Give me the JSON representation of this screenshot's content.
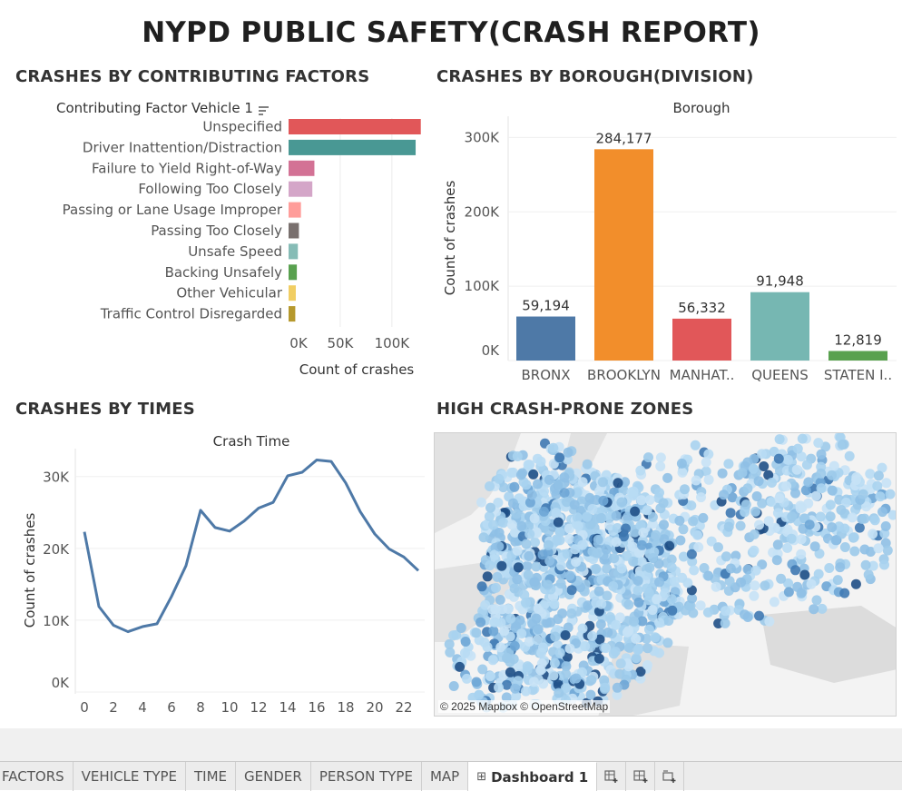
{
  "dashboard": {
    "title": "NYPD PUBLIC SAFETY(CRASH REPORT)"
  },
  "factors": {
    "section_title": "CRASHES BY CONTRIBUTING FACTORS",
    "field_header": "Contributing Factor Vehicle 1",
    "x_label": "Count of crashes",
    "x_ticks": [
      "0K",
      "50K",
      "100K"
    ]
  },
  "borough": {
    "section_title": "CRASHES  BY BOROUGH(DIVISION)",
    "header": "Borough",
    "y_label": "Count of crashes",
    "y_ticks": [
      "0K",
      "100K",
      "200K",
      "300K"
    ],
    "data_labels": [
      "59,194",
      "284,177",
      "56,332",
      "91,948",
      "12,819"
    ],
    "category_labels": [
      "BRONX",
      "BROOKLYN",
      "MANHAT..",
      "QUEENS",
      "STATEN I.."
    ]
  },
  "times": {
    "section_title": "CRASHES BY TIMES",
    "header": "Crash Time",
    "y_label": "Count of crashes",
    "y_ticks": [
      "0K",
      "10K",
      "20K",
      "30K"
    ],
    "x_ticks": [
      "0",
      "2",
      "4",
      "6",
      "8",
      "10",
      "12",
      "14",
      "16",
      "18",
      "20",
      "22"
    ]
  },
  "map": {
    "section_title": "HIGH CRASH-PRONE ZONES",
    "credit": "© 2025 Mapbox © OpenStreetMap"
  },
  "tabs": [
    {
      "label": "FACTORS",
      "active": false
    },
    {
      "label": "VEHICLE TYPE",
      "active": false
    },
    {
      "label": "TIME",
      "active": false
    },
    {
      "label": "GENDER",
      "active": false
    },
    {
      "label": "PERSON TYPE",
      "active": false
    },
    {
      "label": "MAP",
      "active": false
    },
    {
      "label": "Dashboard 1",
      "active": true
    }
  ],
  "tab_icons": [
    "new-worksheet-icon",
    "new-dashboard-icon",
    "new-story-icon"
  ],
  "chart_data": [
    {
      "type": "bar",
      "orientation": "horizontal",
      "categories": [
        "Unspecified",
        "Driver Inattention/Distraction",
        "Failure to Yield Right-of-Way",
        "Following Too Closely",
        "Passing or Lane Usage Improper",
        "Passing Too Closely",
        "Unsafe Speed",
        "Backing Unsafely",
        "Other Vehicular",
        "Traffic Control Disregarded"
      ],
      "values": [
        128000,
        123000,
        25000,
        23000,
        12000,
        10000,
        9000,
        8000,
        7000,
        6500
      ],
      "colors": [
        "#e15759",
        "#499894",
        "#d37295",
        "#d4a6c8",
        "#ff9d9a",
        "#79706e",
        "#86bcb6",
        "#59a14f",
        "#f1ce63",
        "#b6992d"
      ],
      "xlabel": "Count of crashes",
      "xlim": [
        0,
        130000
      ]
    },
    {
      "type": "bar",
      "categories": [
        "BRONX",
        "BROOKLYN",
        "MANHAT..",
        "QUEENS",
        "STATEN I.."
      ],
      "values": [
        59194,
        284177,
        56332,
        91948,
        12819
      ],
      "colors": [
        "#4e79a7",
        "#f28e2b",
        "#e15759",
        "#76b7b2",
        "#59a14f"
      ],
      "ylabel": "Count of crashes",
      "ylim": [
        0,
        320000
      ]
    },
    {
      "type": "line",
      "x": [
        0,
        1,
        2,
        3,
        4,
        5,
        6,
        7,
        8,
        9,
        10,
        11,
        12,
        13,
        14,
        15,
        16,
        17,
        18,
        19,
        20,
        21,
        22,
        23
      ],
      "values": [
        22300,
        11900,
        9300,
        8400,
        9100,
        9500,
        13300,
        17600,
        25300,
        22900,
        22400,
        23800,
        25600,
        26400,
        30100,
        30600,
        32300,
        32100,
        29100,
        25100,
        22000,
        19900,
        18800,
        16900
      ],
      "color": "#4e79a7",
      "ylabel": "Count of crashes",
      "ylim": [
        0,
        33000
      ]
    }
  ]
}
